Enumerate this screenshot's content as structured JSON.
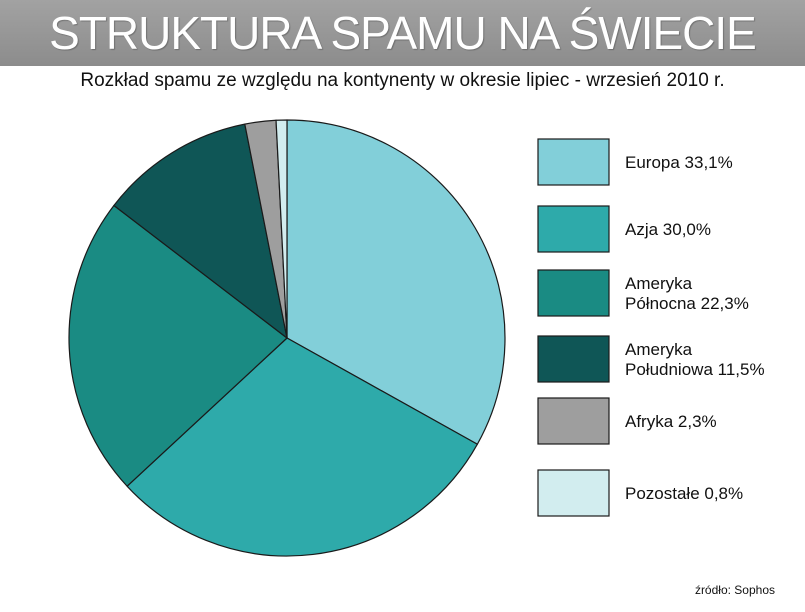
{
  "header": {
    "title": "STRUKTURA SPAMU NA ŚWIECIE"
  },
  "footer": {
    "source": "źródło: Sophos"
  },
  "chart_data": {
    "type": "pie",
    "title": "Rozkład spamu ze względu na kontynenty w okresie lipiec - wrzesień 2010 r.",
    "unit": "%",
    "start_angle": "12 o'clock",
    "direction": "clockwise",
    "legend_position": "right",
    "slices": [
      {
        "label_lines": [
          "Europa 33,1%"
        ],
        "value": 33.1,
        "color": "#82cfd9"
      },
      {
        "label_lines": [
          "Azja 30,0%"
        ],
        "value": 30.0,
        "color": "#2eaaaa"
      },
      {
        "label_lines": [
          "Ameryka",
          "Północna 22,3%"
        ],
        "value": 22.3,
        "color": "#1a8b83"
      },
      {
        "label_lines": [
          "Ameryka",
          "Południowa 11,5%"
        ],
        "value": 11.5,
        "color": "#0f5656"
      },
      {
        "label_lines": [
          "Afryka 2,3%"
        ],
        "value": 2.3,
        "color": "#9e9e9e"
      },
      {
        "label_lines": [
          "Pozostałe 0,8%"
        ],
        "value": 0.8,
        "color": "#d2edef"
      }
    ]
  }
}
